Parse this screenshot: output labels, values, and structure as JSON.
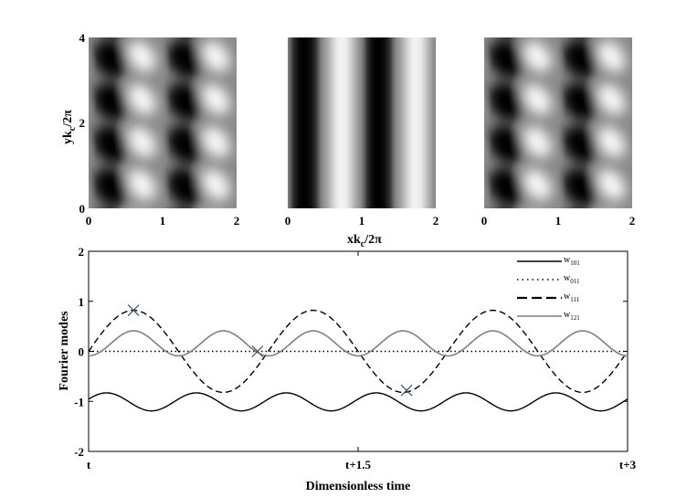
{
  "chart_data": [
    {
      "type": "heatmap",
      "panel": "pattern-1",
      "pattern": "oblique",
      "colormap": "gray",
      "xlim": [
        0,
        2
      ],
      "ylim": [
        0,
        4
      ],
      "x_ticks": [
        "0",
        "1",
        "2"
      ],
      "y_ticks": [
        "0",
        "2",
        "4"
      ],
      "ylabel": {
        "main": "yk",
        "sub": "c",
        "rest": "/2π"
      }
    },
    {
      "type": "heatmap",
      "panel": "pattern-2",
      "pattern": "stripes",
      "colormap": "gray",
      "xlim": [
        0,
        2
      ],
      "ylim": [
        0,
        4
      ],
      "x_ticks": [
        "0",
        "1",
        "2"
      ],
      "xlabel": {
        "main": "xk",
        "sub": "c",
        "rest": "/2π"
      }
    },
    {
      "type": "heatmap",
      "panel": "pattern-3",
      "pattern": "oblique",
      "colormap": "gray",
      "xlim": [
        0,
        2
      ],
      "ylim": [
        0,
        4
      ],
      "x_ticks": [
        "0",
        "1",
        "2"
      ]
    },
    {
      "type": "line",
      "xlabel": "Dimensionless time",
      "ylabel": "Fourier modes",
      "xlim": [
        0,
        3
      ],
      "ylim": [
        -2,
        2
      ],
      "x_ticks": [
        {
          "v": 0,
          "label": "t"
        },
        {
          "v": 1.5,
          "label": "t+1.5"
        },
        {
          "v": 3,
          "label": "t+3"
        }
      ],
      "y_ticks": [
        {
          "v": -2,
          "label": "-2"
        },
        {
          "v": -1,
          "label": "-1"
        },
        {
          "v": 0,
          "label": "0"
        },
        {
          "v": 1,
          "label": "1"
        },
        {
          "v": 2,
          "label": "2"
        }
      ],
      "legend_position": "top-right",
      "series": [
        {
          "legend": {
            "main": "w",
            "sub": "101"
          },
          "style": "solid",
          "color": "#000000",
          "formula": {
            "offset": -1.01,
            "amplitude": 0.18,
            "period": 0.5,
            "phase_at_max": 0.1
          }
        },
        {
          "legend": {
            "main": "w",
            "sub": "011"
          },
          "style": "dotted",
          "color": "#000000",
          "formula": {
            "offset": 0,
            "amplitude": 0,
            "period": 1,
            "phase_at_max": 0
          }
        },
        {
          "legend": {
            "main": "w",
            "sub": "111"
          },
          "style": "dashed",
          "color": "#000000",
          "formula": {
            "offset": 0,
            "amplitude": 0.82,
            "period": 1,
            "phase_at_max": 0.25
          }
        },
        {
          "legend": {
            "main": "w",
            "sub": "121"
          },
          "style": "solid",
          "color": "#808080",
          "formula": {
            "offset": 0.16,
            "amplitude": 0.25,
            "period": 0.5,
            "phase_at_max": 0.25
          }
        }
      ],
      "markers": [
        {
          "x": 0.25,
          "y": 0.82,
          "symbol": "x",
          "color": "#3a4f7a"
        },
        {
          "x": 0.94,
          "y": 0.0,
          "symbol": "x",
          "color": "#3a4f7a"
        },
        {
          "x": 1.77,
          "y": -0.78,
          "symbol": "x",
          "color": "#3a4f7a"
        }
      ]
    }
  ]
}
